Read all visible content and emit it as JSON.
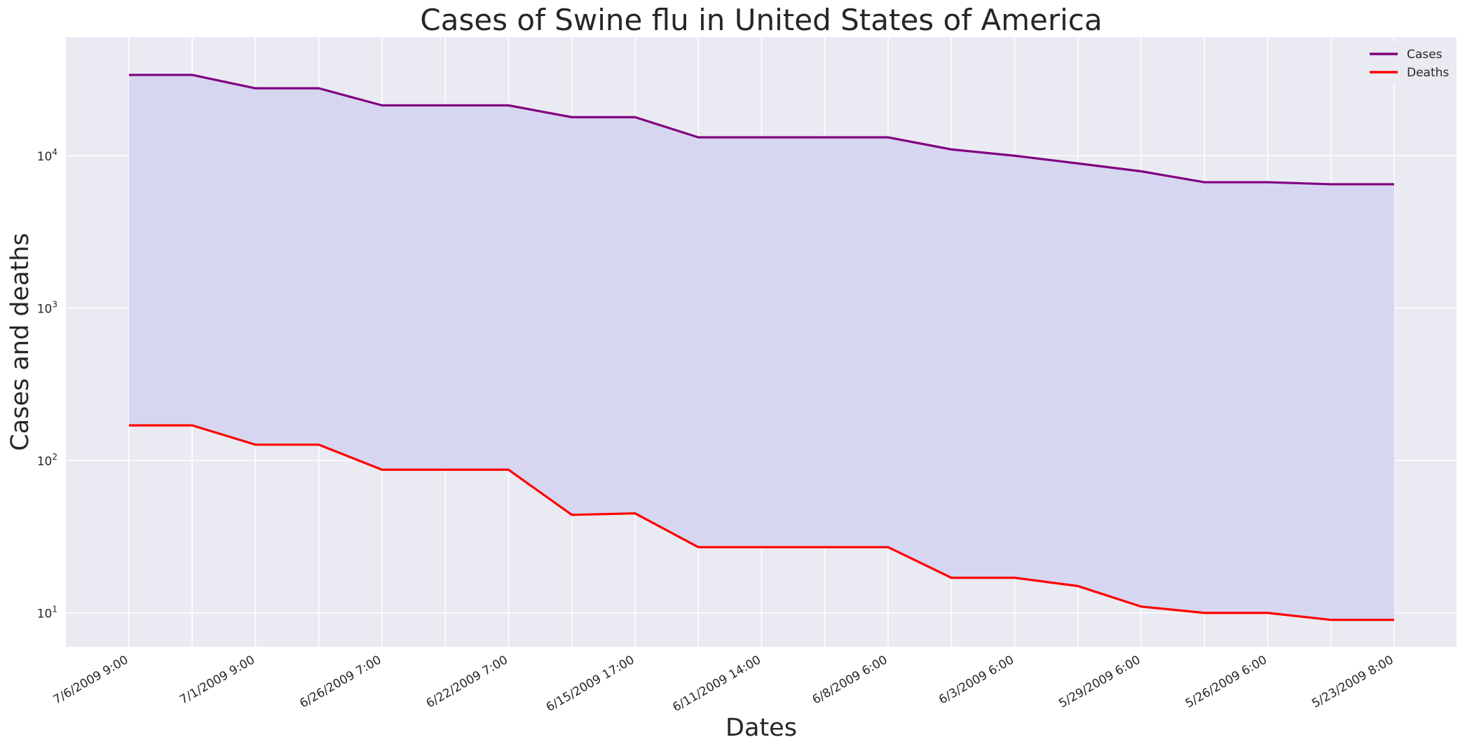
{
  "chart_data": {
    "type": "line",
    "title": "Cases of Swine flu in United States of America",
    "xlabel": "Dates",
    "ylabel": "Cases and deaths",
    "yscale": "log",
    "ylim": [
      6,
      60000
    ],
    "grid": true,
    "legend_position": "top-right",
    "fill_between_series": true,
    "x": [
      "7/6/2009 9:00",
      "",
      "7/1/2009 9:00",
      "",
      "6/26/2009 7:00",
      "",
      "6/22/2009 7:00",
      "",
      "6/15/2009 17:00",
      "",
      "6/11/2009 14:00",
      "",
      "6/8/2009 6:00",
      "",
      "6/3/2009 6:00",
      "",
      "5/29/2009 6:00",
      "",
      "5/26/2009 6:00",
      "",
      "5/23/2009 8:00"
    ],
    "x_tick_labels": [
      "7/6/2009 9:00",
      "7/1/2009 9:00",
      "6/26/2009 7:00",
      "6/22/2009 7:00",
      "6/15/2009 17:00",
      "6/11/2009 14:00",
      "6/8/2009 6:00",
      "6/3/2009 6:00",
      "5/29/2009 6:00",
      "5/26/2009 6:00",
      "5/23/2009 8:00"
    ],
    "y_tick_labels": [
      {
        "base": "10",
        "exp": "1",
        "value": 10
      },
      {
        "base": "10",
        "exp": "2",
        "value": 100
      },
      {
        "base": "10",
        "exp": "3",
        "value": 1000
      },
      {
        "base": "10",
        "exp": "4",
        "value": 10000
      }
    ],
    "series": [
      {
        "name": "Cases",
        "color": "#800080",
        "values": [
          33900,
          33900,
          27700,
          27700,
          21400,
          21400,
          21400,
          17900,
          17900,
          13200,
          13200,
          13200,
          13200,
          11000,
          10000,
          8900,
          7900,
          6700,
          6700,
          6500,
          6500
        ]
      },
      {
        "name": "Deaths",
        "color": "#ff0000",
        "values": [
          170,
          170,
          127,
          127,
          87,
          87,
          87,
          44,
          45,
          27,
          27,
          27,
          27,
          17,
          17,
          15,
          11,
          10,
          10,
          9,
          9
        ]
      }
    ]
  },
  "colors": {
    "plot_background": "#eaeaf2",
    "grid": "#ffffff",
    "fill": "#d2d2f0"
  }
}
